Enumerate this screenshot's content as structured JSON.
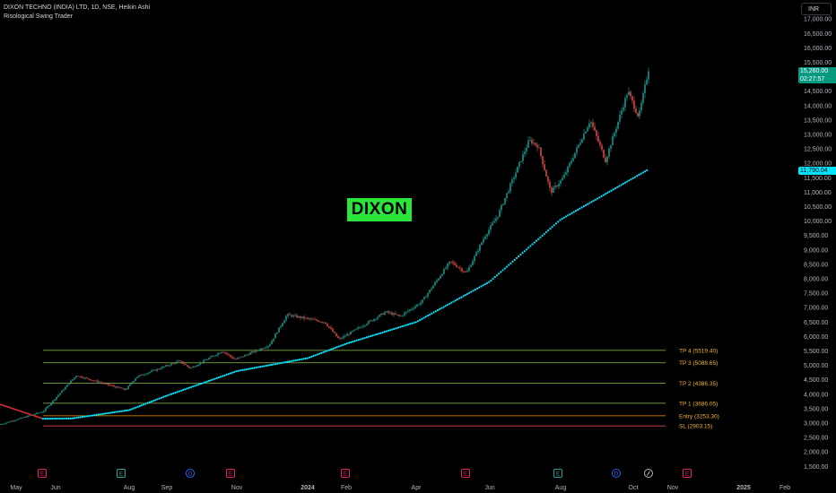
{
  "header": {
    "symbol_line": "DIXON TECHNO (INDIA) LTD, 1D, NSE, Heikin Ashi",
    "indicator": "Risological Swing Trader"
  },
  "currency": "INR",
  "logo_text": "DIXON",
  "price_axis": [
    "17,000.00",
    "16,500.00",
    "16,000.00",
    "15,500.00",
    "14,500.00",
    "14,000.00",
    "13,500.00",
    "13,000.00",
    "12,500.00",
    "12,000.00",
    "11,500.00",
    "11,000.00",
    "10,500.00",
    "10,000.00",
    "9,500.00",
    "9,000.00",
    "8,500.00",
    "8,000.00",
    "7,500.00",
    "7,000.00",
    "6,500.00",
    "6,000.00",
    "5,500.00",
    "5,000.00",
    "4,500.00",
    "4,000.00",
    "3,500.00",
    "3,000.00",
    "2,500.00",
    "2,000.00",
    "1,500.00"
  ],
  "time_axis": [
    "May",
    "Jun",
    "Aug",
    "Sep",
    "Nov",
    "2024",
    "Feb",
    "Apr",
    "Jun",
    "Aug",
    "Oct",
    "Nov",
    "2025",
    "Feb"
  ],
  "current_price": {
    "value": "15,260.00",
    "countdown": "02:27:57",
    "color": "#089981"
  },
  "trail_price": {
    "value": "11,790.04",
    "color": "#00e5ff"
  },
  "levels": [
    {
      "label": "TP 4 (5519.40)",
      "value": 5519.4,
      "color": "#8bc34a"
    },
    {
      "label": "TP 3 (5088.65)",
      "value": 5088.65,
      "color": "#8bc34a"
    },
    {
      "label": "TP 2 (4386.35)",
      "value": 4386.35,
      "color": "#8bc34a"
    },
    {
      "label": "TP 1 (3686.05)",
      "value": 3686.05,
      "color": "#8bc34a"
    },
    {
      "label": "Entry (3253.30)",
      "value": 3253.3,
      "color": "#ff9800"
    },
    {
      "label": "SL (2903.15)",
      "value": 2903.15,
      "color": "#ff5252"
    }
  ],
  "event_markers": [
    {
      "type": "E",
      "color": "#e91e63"
    },
    {
      "type": "E",
      "color": "#26a69a"
    },
    {
      "type": "D",
      "color": "#2962ff"
    },
    {
      "type": "E",
      "color": "#e91e63"
    },
    {
      "type": "E",
      "color": "#e91e63"
    },
    {
      "type": "E",
      "color": "#e91e63"
    },
    {
      "type": "E",
      "color": "#26a69a"
    },
    {
      "type": "D",
      "color": "#2962ff"
    },
    {
      "type": "split",
      "color": "#b2b5be"
    },
    {
      "type": "E",
      "color": "#e91e63"
    }
  ],
  "colors": {
    "up": "#26a69a",
    "down": "#ef5350",
    "trail": "#00e5ff",
    "pre_trail": "#d32f2f",
    "background": "#000000"
  },
  "chart_data": {
    "type": "candlestick",
    "title": "DIXON TECHNO (INDIA) LTD, 1D, NSE, Heikin Ashi",
    "ylim": [
      1300,
      17200
    ],
    "y_scale": "linear",
    "price_path": [
      [
        "May",
        2950
      ],
      [
        "Jun",
        3400
      ],
      [
        "Jun",
        4650
      ],
      [
        "Aug",
        4150
      ],
      [
        "Aug",
        4600
      ],
      [
        "Sep",
        5150
      ],
      [
        "Sep",
        4900
      ],
      [
        "Nov",
        5500
      ],
      [
        "Nov",
        5200
      ],
      [
        "Nov",
        5700
      ],
      [
        "Nov",
        6750
      ],
      [
        "2024",
        6500
      ],
      [
        "2024",
        5900
      ],
      [
        "Feb",
        6850
      ],
      [
        "Feb",
        6700
      ],
      [
        "Apr",
        7200
      ],
      [
        "Apr",
        8600
      ],
      [
        "Apr",
        8200
      ],
      [
        "Apr",
        9450
      ],
      [
        "Jun",
        10200
      ],
      [
        "Jun",
        12800
      ],
      [
        "Jun",
        12600
      ],
      [
        "Aug",
        11000
      ],
      [
        "Aug",
        11500
      ],
      [
        "Aug",
        13500
      ],
      [
        "Aug",
        12100
      ],
      [
        "Aug",
        14500
      ],
      [
        "Oct",
        13600
      ],
      [
        "Oct",
        15260
      ]
    ],
    "trail_path": [
      [
        "Jun",
        3150
      ],
      [
        "Aug",
        3450
      ],
      [
        "Sep",
        3950
      ],
      [
        "Nov",
        4800
      ],
      [
        "2024",
        5250
      ],
      [
        "Feb",
        5750
      ],
      [
        "Apr",
        6500
      ],
      [
        "Jun",
        7900
      ],
      [
        "Aug",
        10050
      ],
      [
        "Oct",
        11790
      ]
    ],
    "grid": false,
    "legend": "none"
  }
}
